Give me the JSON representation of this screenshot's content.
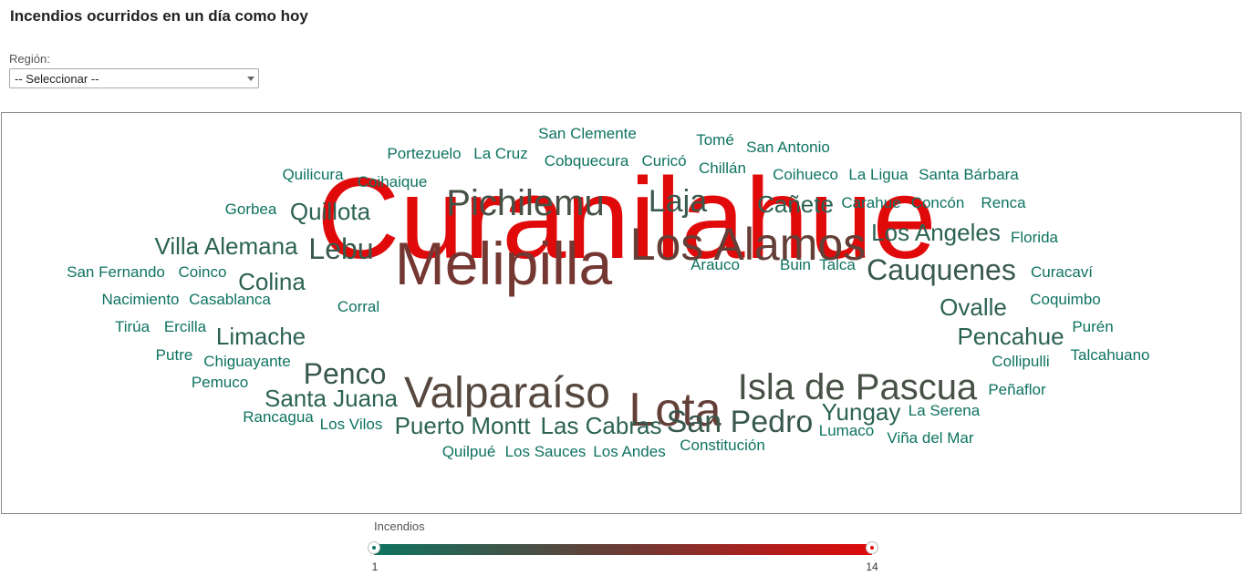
{
  "header": {
    "title": "Incendios ocurridos en un día como hoy"
  },
  "filter": {
    "label": "Región:",
    "selected": "-- Seleccionar --"
  },
  "legend": {
    "title": "Incendios",
    "min": "1",
    "max": "14"
  },
  "colors": {
    "low": "#0e7360",
    "mid": "#6b3b35",
    "high": "#e00a0a"
  },
  "chart_data": {
    "type": "wordcloud",
    "value_label": "Incendios",
    "range": [
      1,
      14
    ],
    "words": [
      {
        "text": "Curanilahue",
        "value": 14
      },
      {
        "text": "Melipilla",
        "value": 8
      },
      {
        "text": "Lota",
        "value": 7
      },
      {
        "text": "Los Alamos",
        "value": 7
      },
      {
        "text": "Valparaíso",
        "value": 6
      },
      {
        "text": "Pichilemu",
        "value": 5
      },
      {
        "text": "Isla de Pascua",
        "value": 5
      },
      {
        "text": "San Pedro",
        "value": 4
      },
      {
        "text": "Laja",
        "value": 4
      },
      {
        "text": "Lebu",
        "value": 4
      },
      {
        "text": "Penco",
        "value": 4
      },
      {
        "text": "Cauquenes",
        "value": 4
      },
      {
        "text": "Los Angeles",
        "value": 3
      },
      {
        "text": "Colina",
        "value": 3
      },
      {
        "text": "Villa Alemana",
        "value": 3
      },
      {
        "text": "Quillota",
        "value": 3
      },
      {
        "text": "Limache",
        "value": 3
      },
      {
        "text": "Santa Juana",
        "value": 3
      },
      {
        "text": "Puerto Montt",
        "value": 3
      },
      {
        "text": "Las Cabras",
        "value": 3
      },
      {
        "text": "Yungay",
        "value": 3
      },
      {
        "text": "Pencahue",
        "value": 3
      },
      {
        "text": "Ovalle",
        "value": 3
      },
      {
        "text": "Cañete",
        "value": 3
      },
      {
        "text": "San Clemente",
        "value": 1
      },
      {
        "text": "Tomé",
        "value": 1
      },
      {
        "text": "San Antonio",
        "value": 1
      },
      {
        "text": "Portezuelo",
        "value": 1
      },
      {
        "text": "La Cruz",
        "value": 1
      },
      {
        "text": "Cobquecura",
        "value": 1
      },
      {
        "text": "Curicó",
        "value": 1
      },
      {
        "text": "Chillán",
        "value": 1
      },
      {
        "text": "Quilicura",
        "value": 1
      },
      {
        "text": "Coihaique",
        "value": 1
      },
      {
        "text": "Coihueco",
        "value": 1
      },
      {
        "text": "La Ligua",
        "value": 1
      },
      {
        "text": "Santa Bárbara",
        "value": 1
      },
      {
        "text": "Gorbea",
        "value": 1
      },
      {
        "text": "Carahue",
        "value": 1
      },
      {
        "text": "Concón",
        "value": 1
      },
      {
        "text": "Renca",
        "value": 1
      },
      {
        "text": "Florida",
        "value": 1
      },
      {
        "text": "San Fernando",
        "value": 1
      },
      {
        "text": "Coinco",
        "value": 1
      },
      {
        "text": "Arauco",
        "value": 1
      },
      {
        "text": "Buin",
        "value": 1
      },
      {
        "text": "Talca",
        "value": 1
      },
      {
        "text": "Curacaví",
        "value": 1
      },
      {
        "text": "Nacimiento",
        "value": 1
      },
      {
        "text": "Casablanca",
        "value": 1
      },
      {
        "text": "Corral",
        "value": 1
      },
      {
        "text": "Coquimbo",
        "value": 1
      },
      {
        "text": "Tirúa",
        "value": 1
      },
      {
        "text": "Ercilla",
        "value": 1
      },
      {
        "text": "Purén",
        "value": 1
      },
      {
        "text": "Putre",
        "value": 1
      },
      {
        "text": "Chiguayante",
        "value": 1
      },
      {
        "text": "Collipulli",
        "value": 1
      },
      {
        "text": "Talcahuano",
        "value": 1
      },
      {
        "text": "Pemuco",
        "value": 1
      },
      {
        "text": "Peñaflor",
        "value": 1
      },
      {
        "text": "Rancagua",
        "value": 1
      },
      {
        "text": "Los Vilos",
        "value": 1
      },
      {
        "text": "La Serena",
        "value": 1
      },
      {
        "text": "Lumaco",
        "value": 1
      },
      {
        "text": "Viña del Mar",
        "value": 1
      },
      {
        "text": "Constitución",
        "value": 1
      },
      {
        "text": "Quilpué",
        "value": 1
      },
      {
        "text": "Los Sauces",
        "value": 1
      },
      {
        "text": "Los Andes",
        "value": 1
      }
    ]
  }
}
